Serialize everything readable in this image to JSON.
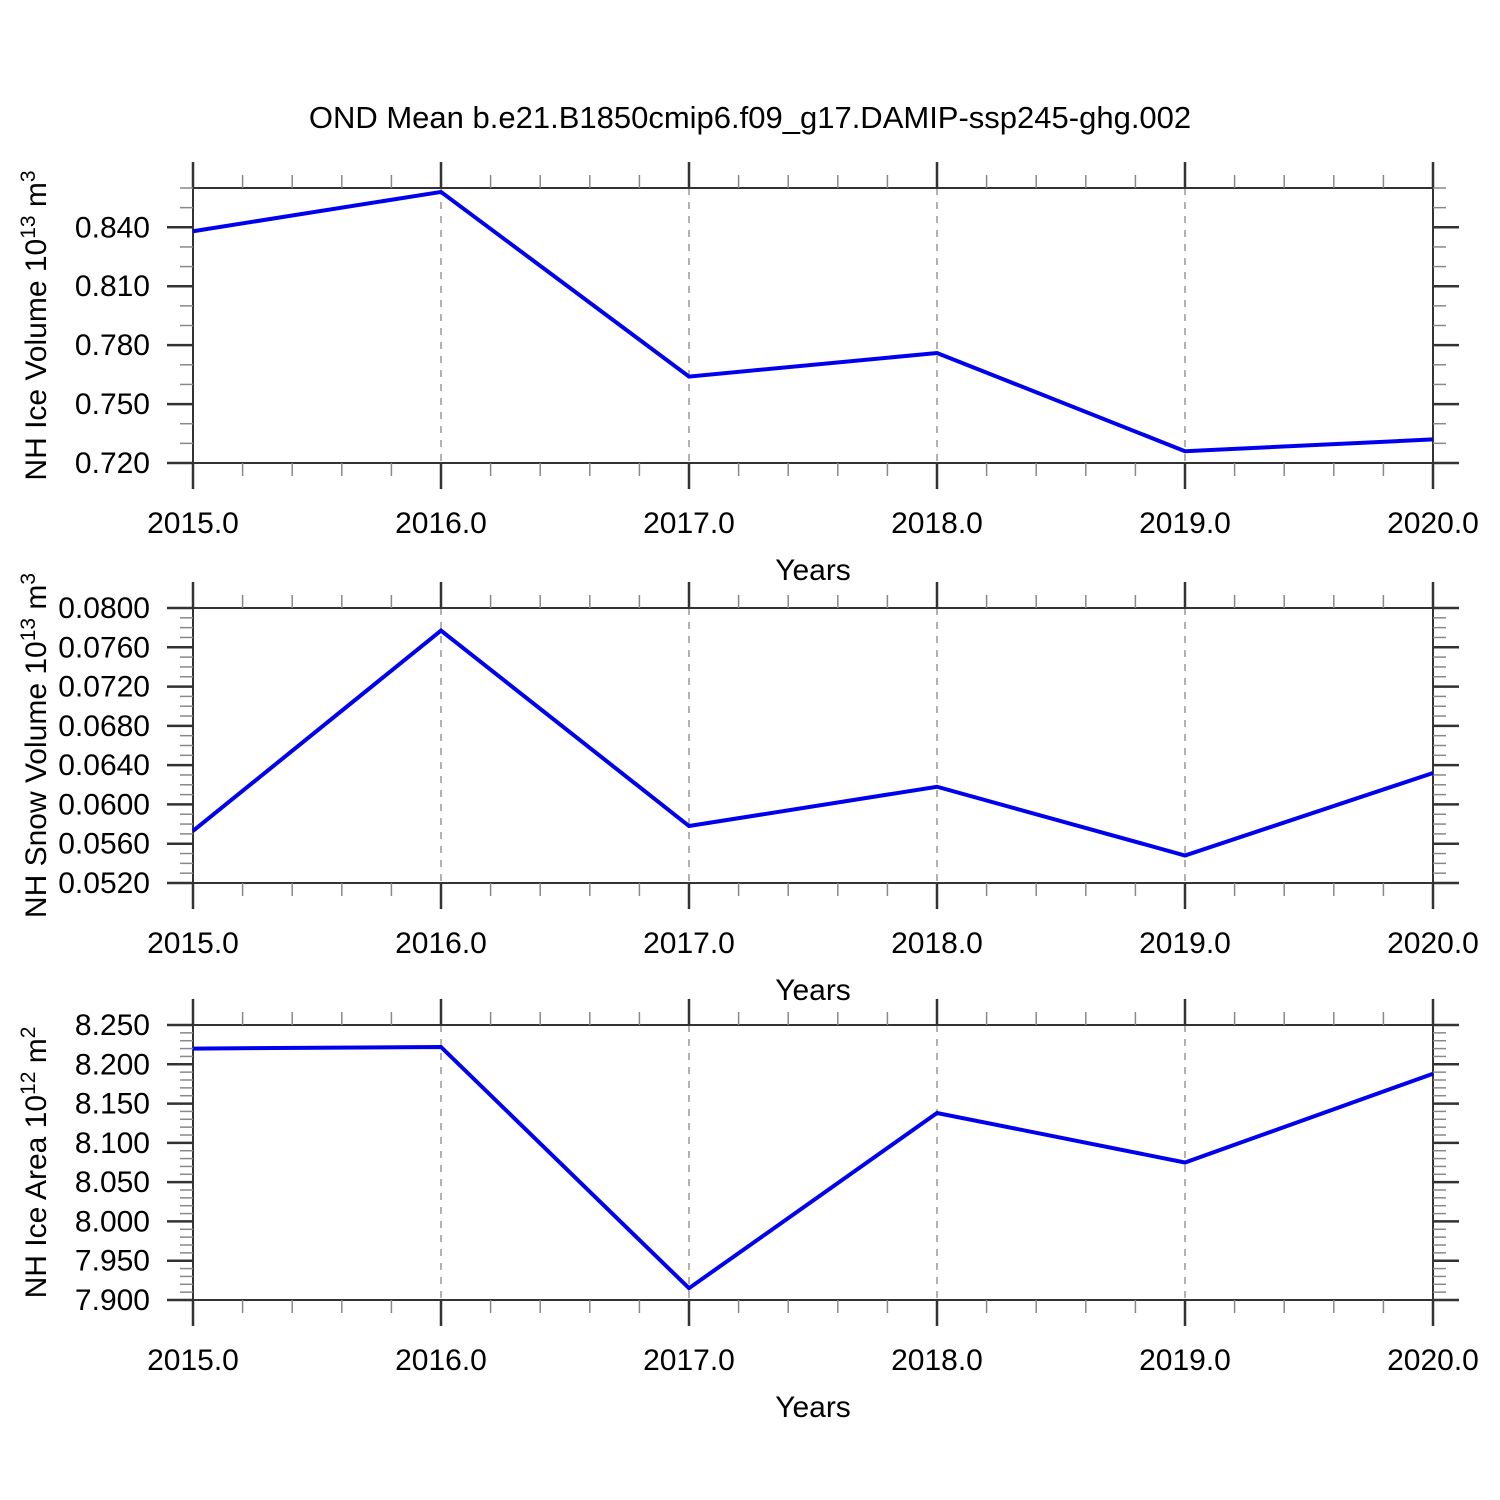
{
  "title": "OND Mean b.e21.B1850cmip6.f09_g17.DAMIP-ssp245-ghg.002",
  "line_color": "#0000ee",
  "grid_color": "#999999",
  "frame_color": "#333333",
  "minor_tick_color": "#888888",
  "chart_data": [
    {
      "type": "line",
      "name": "nh-ice-volume",
      "title": "OND Mean b.e21.B1850cmip6.f09_g17.DAMIP-ssp245-ghg.002",
      "xlabel": "Years",
      "ylabel": "NH Ice Volume 10^13 m^3",
      "x": [
        2015,
        2016,
        2017,
        2018,
        2019,
        2020
      ],
      "values": [
        0.838,
        0.858,
        0.764,
        0.776,
        0.726,
        0.732
      ],
      "xlim": [
        2015,
        2020
      ],
      "ylim": [
        0.72,
        0.86
      ],
      "xtick_labels": [
        "2015.0",
        "2016.0",
        "2017.0",
        "2018.0",
        "2019.0",
        "2020.0"
      ],
      "x_minor_step": 0.2,
      "ytick_values": [
        0.72,
        0.75,
        0.78,
        0.81,
        0.84
      ],
      "ytick_labels": [
        "0.720",
        "0.750",
        "0.780",
        "0.810",
        "0.840"
      ],
      "ytick_step": 0.03,
      "y_minor_step": 0.01,
      "gridlines_x": [
        2016,
        2017,
        2018,
        2019
      ],
      "grid": "dashed-vertical",
      "legend": "none"
    },
    {
      "type": "line",
      "name": "nh-snow-volume",
      "xlabel": "Years",
      "ylabel": "NH Snow Volume 10^13 m^3",
      "x": [
        2015,
        2016,
        2017,
        2018,
        2019,
        2020
      ],
      "values": [
        0.0573,
        0.0777,
        0.0578,
        0.0618,
        0.0548,
        0.0632
      ],
      "xlim": [
        2015,
        2020
      ],
      "ylim": [
        0.052,
        0.08
      ],
      "xtick_labels": [
        "2015.0",
        "2016.0",
        "2017.0",
        "2018.0",
        "2019.0",
        "2020.0"
      ],
      "x_minor_step": 0.2,
      "ytick_values": [
        0.052,
        0.056,
        0.06,
        0.064,
        0.068,
        0.072,
        0.076,
        0.08
      ],
      "ytick_labels": [
        "0.0520",
        "0.0560",
        "0.0600",
        "0.0640",
        "0.0680",
        "0.0720",
        "0.0760",
        "0.0800"
      ],
      "ytick_step": 0.004,
      "y_minor_step": 0.001,
      "gridlines_x": [
        2016,
        2017,
        2018,
        2019
      ],
      "grid": "dashed-vertical",
      "legend": "none"
    },
    {
      "type": "line",
      "name": "nh-ice-area",
      "xlabel": "Years",
      "ylabel": "NH Ice Area 10^12 m^2",
      "x": [
        2015,
        2016,
        2017,
        2018,
        2019,
        2020
      ],
      "values": [
        8.22,
        8.222,
        7.915,
        8.138,
        8.075,
        8.188
      ],
      "xlim": [
        2015,
        2020
      ],
      "ylim": [
        7.9,
        8.25
      ],
      "xtick_labels": [
        "2015.0",
        "2016.0",
        "2017.0",
        "2018.0",
        "2019.0",
        "2020.0"
      ],
      "x_minor_step": 0.2,
      "ytick_values": [
        7.9,
        7.95,
        8.0,
        8.05,
        8.1,
        8.15,
        8.2,
        8.25
      ],
      "ytick_labels": [
        "7.900",
        "7.950",
        "8.000",
        "8.050",
        "8.100",
        "8.150",
        "8.200",
        "8.250"
      ],
      "ytick_step": 0.05,
      "y_minor_step": 0.01,
      "gridlines_x": [
        2016,
        2017,
        2018,
        2019
      ],
      "grid": "dashed-vertical",
      "legend": "none"
    }
  ]
}
